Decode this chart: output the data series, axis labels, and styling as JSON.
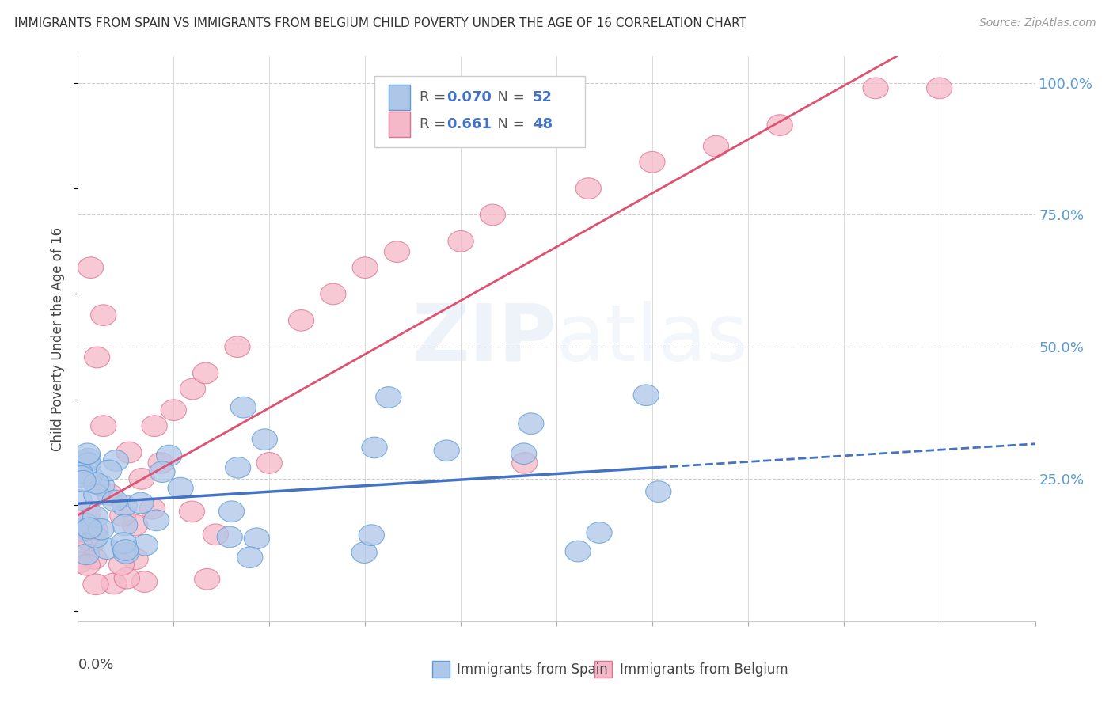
{
  "title": "IMMIGRANTS FROM SPAIN VS IMMIGRANTS FROM BELGIUM CHILD POVERTY UNDER THE AGE OF 16 CORRELATION CHART",
  "source": "Source: ZipAtlas.com",
  "ylabel": "Child Poverty Under the Age of 16",
  "legend_bottom": [
    "Immigrants from Spain",
    "Immigrants from Belgium"
  ],
  "r_spain": 0.07,
  "n_spain": 52,
  "r_belgium": 0.661,
  "n_belgium": 48,
  "color_spain_fill": "#aec6e8",
  "color_spain_edge": "#5b9bd5",
  "color_belgium_fill": "#f5b8c8",
  "color_belgium_edge": "#e07090",
  "color_spain_line": "#4472c4",
  "color_belgium_line": "#e05070",
  "color_r_value": "#4472c4",
  "color_ytick": "#5b9bd5",
  "watermark_color": "#dde8f4",
  "xlim": [
    0.0,
    0.15
  ],
  "ylim": [
    -0.02,
    1.05
  ],
  "grid_color": "#cccccc",
  "background_color": "#ffffff",
  "spain_x": [
    0.0003,
    0.0004,
    0.0005,
    0.0006,
    0.0007,
    0.0008,
    0.001,
    0.001,
    0.0012,
    0.0013,
    0.0015,
    0.0016,
    0.0018,
    0.002,
    0.002,
    0.0022,
    0.0024,
    0.0025,
    0.003,
    0.003,
    0.0033,
    0.0035,
    0.004,
    0.004,
    0.004,
    0.005,
    0.005,
    0.006,
    0.006,
    0.007,
    0.008,
    0.009,
    0.01,
    0.011,
    0.012,
    0.013,
    0.014,
    0.016,
    0.018,
    0.02,
    0.022,
    0.025,
    0.028,
    0.03,
    0.035,
    0.04,
    0.045,
    0.05,
    0.06,
    0.07,
    0.08,
    0.095
  ],
  "spain_y": [
    0.18,
    0.22,
    0.15,
    0.2,
    0.17,
    0.21,
    0.16,
    0.23,
    0.19,
    0.14,
    0.2,
    0.25,
    0.17,
    0.18,
    0.22,
    0.15,
    0.24,
    0.2,
    0.16,
    0.21,
    0.19,
    0.23,
    0.17,
    0.3,
    0.35,
    0.18,
    0.22,
    0.28,
    0.2,
    0.15,
    0.24,
    0.19,
    0.17,
    0.22,
    0.16,
    0.2,
    0.25,
    0.18,
    0.22,
    0.19,
    0.28,
    0.16,
    0.45,
    0.2,
    0.17,
    0.25,
    0.22,
    0.2,
    0.3,
    0.22,
    0.1,
    0.21
  ],
  "belgium_x": [
    0.0003,
    0.0004,
    0.0005,
    0.0006,
    0.0007,
    0.0009,
    0.001,
    0.0012,
    0.0014,
    0.0016,
    0.0018,
    0.002,
    0.002,
    0.0025,
    0.003,
    0.0033,
    0.004,
    0.005,
    0.006,
    0.007,
    0.008,
    0.009,
    0.01,
    0.012,
    0.014,
    0.016,
    0.018,
    0.02,
    0.025,
    0.03,
    0.035,
    0.04,
    0.045,
    0.05,
    0.055,
    0.06,
    0.065,
    0.07,
    0.075,
    0.08,
    0.085,
    0.09,
    0.095,
    0.1,
    0.105,
    0.11,
    0.12,
    0.13
  ],
  "belgium_y": [
    0.1,
    0.08,
    0.12,
    0.06,
    0.09,
    0.11,
    0.07,
    0.13,
    0.08,
    0.65,
    0.1,
    0.09,
    0.15,
    0.12,
    0.35,
    0.55,
    0.18,
    0.2,
    0.48,
    0.15,
    0.25,
    0.3,
    0.22,
    0.28,
    0.35,
    0.38,
    0.4,
    0.45,
    0.5,
    0.55,
    0.58,
    0.62,
    0.65,
    0.68,
    0.7,
    0.72,
    0.75,
    0.28,
    0.78,
    0.8,
    0.82,
    0.85,
    0.88,
    0.9,
    0.92,
    0.94,
    0.97,
    1.0
  ]
}
